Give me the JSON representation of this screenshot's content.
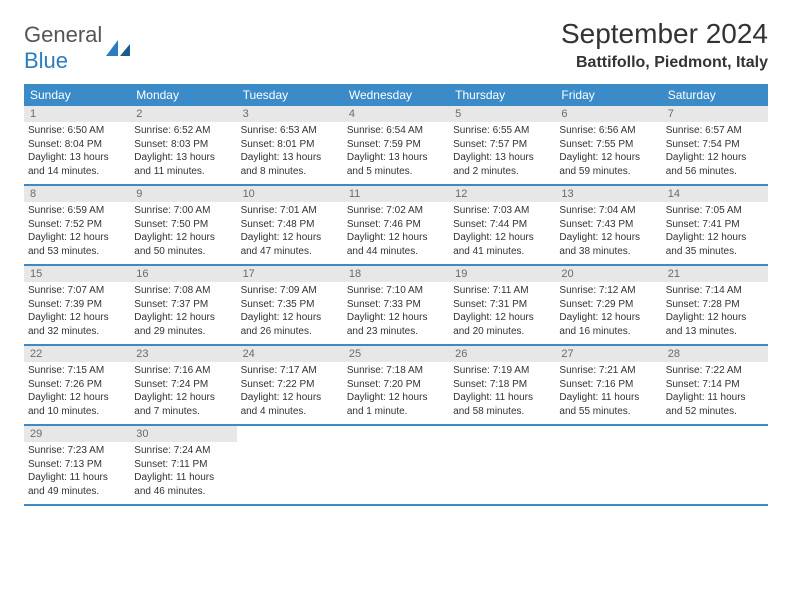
{
  "logo": {
    "text1": "General",
    "text2": "Blue"
  },
  "title": "September 2024",
  "location": "Battifollo, Piedmont, Italy",
  "colors": {
    "header_bg": "#3b8bc9",
    "header_text": "#ffffff",
    "daynum_bg": "#e7e7e7",
    "daynum_text": "#6b6b6b",
    "body_text": "#333333",
    "rule": "#3b8bc9"
  },
  "dow": [
    "Sunday",
    "Monday",
    "Tuesday",
    "Wednesday",
    "Thursday",
    "Friday",
    "Saturday"
  ],
  "weeks": [
    [
      {
        "n": "1",
        "sr": "Sunrise: 6:50 AM",
        "ss": "Sunset: 8:04 PM",
        "dl": "Daylight: 13 hours and 14 minutes."
      },
      {
        "n": "2",
        "sr": "Sunrise: 6:52 AM",
        "ss": "Sunset: 8:03 PM",
        "dl": "Daylight: 13 hours and 11 minutes."
      },
      {
        "n": "3",
        "sr": "Sunrise: 6:53 AM",
        "ss": "Sunset: 8:01 PM",
        "dl": "Daylight: 13 hours and 8 minutes."
      },
      {
        "n": "4",
        "sr": "Sunrise: 6:54 AM",
        "ss": "Sunset: 7:59 PM",
        "dl": "Daylight: 13 hours and 5 minutes."
      },
      {
        "n": "5",
        "sr": "Sunrise: 6:55 AM",
        "ss": "Sunset: 7:57 PM",
        "dl": "Daylight: 13 hours and 2 minutes."
      },
      {
        "n": "6",
        "sr": "Sunrise: 6:56 AM",
        "ss": "Sunset: 7:55 PM",
        "dl": "Daylight: 12 hours and 59 minutes."
      },
      {
        "n": "7",
        "sr": "Sunrise: 6:57 AM",
        "ss": "Sunset: 7:54 PM",
        "dl": "Daylight: 12 hours and 56 minutes."
      }
    ],
    [
      {
        "n": "8",
        "sr": "Sunrise: 6:59 AM",
        "ss": "Sunset: 7:52 PM",
        "dl": "Daylight: 12 hours and 53 minutes."
      },
      {
        "n": "9",
        "sr": "Sunrise: 7:00 AM",
        "ss": "Sunset: 7:50 PM",
        "dl": "Daylight: 12 hours and 50 minutes."
      },
      {
        "n": "10",
        "sr": "Sunrise: 7:01 AM",
        "ss": "Sunset: 7:48 PM",
        "dl": "Daylight: 12 hours and 47 minutes."
      },
      {
        "n": "11",
        "sr": "Sunrise: 7:02 AM",
        "ss": "Sunset: 7:46 PM",
        "dl": "Daylight: 12 hours and 44 minutes."
      },
      {
        "n": "12",
        "sr": "Sunrise: 7:03 AM",
        "ss": "Sunset: 7:44 PM",
        "dl": "Daylight: 12 hours and 41 minutes."
      },
      {
        "n": "13",
        "sr": "Sunrise: 7:04 AM",
        "ss": "Sunset: 7:43 PM",
        "dl": "Daylight: 12 hours and 38 minutes."
      },
      {
        "n": "14",
        "sr": "Sunrise: 7:05 AM",
        "ss": "Sunset: 7:41 PM",
        "dl": "Daylight: 12 hours and 35 minutes."
      }
    ],
    [
      {
        "n": "15",
        "sr": "Sunrise: 7:07 AM",
        "ss": "Sunset: 7:39 PM",
        "dl": "Daylight: 12 hours and 32 minutes."
      },
      {
        "n": "16",
        "sr": "Sunrise: 7:08 AM",
        "ss": "Sunset: 7:37 PM",
        "dl": "Daylight: 12 hours and 29 minutes."
      },
      {
        "n": "17",
        "sr": "Sunrise: 7:09 AM",
        "ss": "Sunset: 7:35 PM",
        "dl": "Daylight: 12 hours and 26 minutes."
      },
      {
        "n": "18",
        "sr": "Sunrise: 7:10 AM",
        "ss": "Sunset: 7:33 PM",
        "dl": "Daylight: 12 hours and 23 minutes."
      },
      {
        "n": "19",
        "sr": "Sunrise: 7:11 AM",
        "ss": "Sunset: 7:31 PM",
        "dl": "Daylight: 12 hours and 20 minutes."
      },
      {
        "n": "20",
        "sr": "Sunrise: 7:12 AM",
        "ss": "Sunset: 7:29 PM",
        "dl": "Daylight: 12 hours and 16 minutes."
      },
      {
        "n": "21",
        "sr": "Sunrise: 7:14 AM",
        "ss": "Sunset: 7:28 PM",
        "dl": "Daylight: 12 hours and 13 minutes."
      }
    ],
    [
      {
        "n": "22",
        "sr": "Sunrise: 7:15 AM",
        "ss": "Sunset: 7:26 PM",
        "dl": "Daylight: 12 hours and 10 minutes."
      },
      {
        "n": "23",
        "sr": "Sunrise: 7:16 AM",
        "ss": "Sunset: 7:24 PM",
        "dl": "Daylight: 12 hours and 7 minutes."
      },
      {
        "n": "24",
        "sr": "Sunrise: 7:17 AM",
        "ss": "Sunset: 7:22 PM",
        "dl": "Daylight: 12 hours and 4 minutes."
      },
      {
        "n": "25",
        "sr": "Sunrise: 7:18 AM",
        "ss": "Sunset: 7:20 PM",
        "dl": "Daylight: 12 hours and 1 minute."
      },
      {
        "n": "26",
        "sr": "Sunrise: 7:19 AM",
        "ss": "Sunset: 7:18 PM",
        "dl": "Daylight: 11 hours and 58 minutes."
      },
      {
        "n": "27",
        "sr": "Sunrise: 7:21 AM",
        "ss": "Sunset: 7:16 PM",
        "dl": "Daylight: 11 hours and 55 minutes."
      },
      {
        "n": "28",
        "sr": "Sunrise: 7:22 AM",
        "ss": "Sunset: 7:14 PM",
        "dl": "Daylight: 11 hours and 52 minutes."
      }
    ],
    [
      {
        "n": "29",
        "sr": "Sunrise: 7:23 AM",
        "ss": "Sunset: 7:13 PM",
        "dl": "Daylight: 11 hours and 49 minutes."
      },
      {
        "n": "30",
        "sr": "Sunrise: 7:24 AM",
        "ss": "Sunset: 7:11 PM",
        "dl": "Daylight: 11 hours and 46 minutes."
      },
      null,
      null,
      null,
      null,
      null
    ]
  ]
}
